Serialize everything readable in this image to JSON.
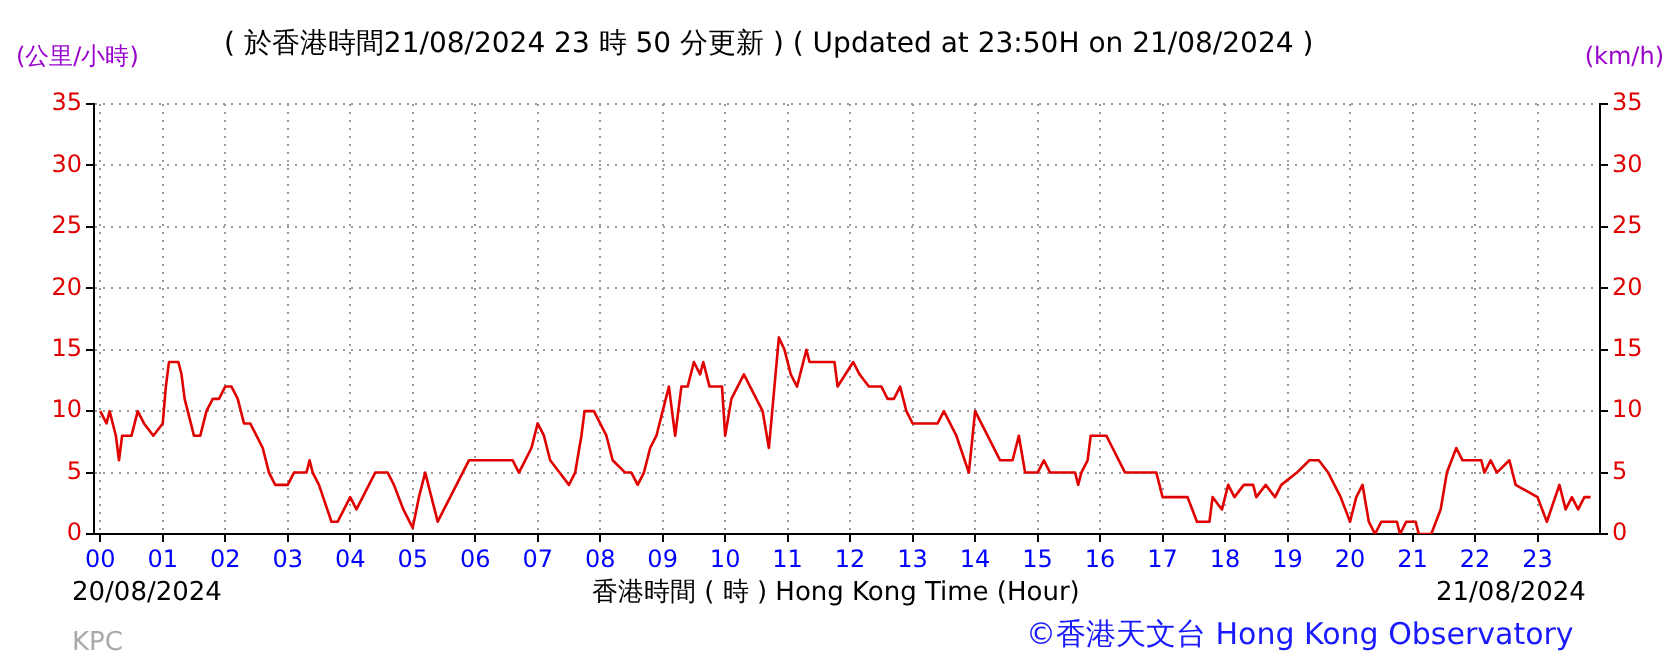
{
  "chart_data": {
    "type": "line",
    "title": "( 於香港時間21/08/2024 23 時 50 分更新 ) ( Updated at 23:50H on 21/08/2024 )",
    "xlabel": "香港時間 ( 時 )  Hong Kong Time (Hour)",
    "ylabel": "(公里/小時)",
    "y2label": "(km/h)",
    "annotations": [
      "20/08/2024",
      "21/08/2024",
      "KPC",
      "©香港天文台 Hong Kong Observatory"
    ],
    "x": [
      0,
      0.1,
      0.15,
      0.25,
      0.3,
      0.35,
      0.5,
      0.55,
      0.6,
      0.7,
      0.85,
      1.0,
      1.05,
      1.1,
      1.25,
      1.3,
      1.35,
      1.45,
      1.5,
      1.6,
      1.7,
      1.8,
      1.9,
      2.0,
      2.1,
      2.2,
      2.3,
      2.4,
      2.5,
      2.6,
      2.7,
      2.8,
      2.9,
      3.0,
      3.1,
      3.3,
      3.35,
      3.4,
      3.5,
      3.7,
      3.8,
      3.9,
      4.0,
      4.1,
      4.2,
      4.3,
      4.4,
      4.6,
      4.7,
      4.85,
      5.0,
      5.1,
      5.2,
      5.35,
      5.4,
      5.5,
      5.6,
      5.7,
      5.8,
      5.9,
      6.0,
      6.6,
      6.7,
      6.8,
      6.9,
      7.0,
      7.1,
      7.2,
      7.35,
      7.5,
      7.6,
      7.7,
      7.75,
      7.9,
      8.0,
      8.1,
      8.2,
      8.4,
      8.5,
      8.6,
      8.7,
      8.8,
      8.9,
      9.0,
      9.1,
      9.2,
      9.3,
      9.4,
      9.5,
      9.6,
      9.65,
      9.75,
      9.95,
      10.0,
      10.1,
      10.2,
      10.3,
      10.4,
      10.6,
      10.7,
      10.86,
      10.95,
      11.05,
      11.15,
      11.3,
      11.35,
      11.5,
      11.75,
      11.8,
      12.05,
      12.15,
      12.3,
      12.5,
      12.6,
      12.7,
      12.8,
      12.9,
      13.0,
      13.4,
      13.5,
      13.6,
      13.7,
      13.9,
      14.0,
      14.2,
      14.4,
      14.6,
      14.7,
      14.8,
      15.0,
      15.1,
      15.2,
      15.6,
      15.65,
      15.7,
      15.8,
      15.85,
      16.1,
      16.2,
      16.3,
      16.4,
      16.9,
      17.0,
      17.4,
      17.55,
      17.75,
      17.8,
      17.95,
      18.05,
      18.15,
      18.3,
      18.45,
      18.5,
      18.65,
      18.8,
      18.9,
      19.15,
      19.35,
      19.5,
      19.65,
      19.85,
      20.0,
      20.1,
      20.2,
      20.3,
      20.4,
      20.5,
      20.75,
      20.8,
      20.9,
      21.05,
      21.1,
      21.3,
      21.45,
      21.55,
      21.7,
      21.8,
      22.1,
      22.15,
      22.25,
      22.35,
      22.55,
      22.65,
      23.0,
      23.15,
      23.35,
      23.45,
      23.55,
      23.65,
      23.75,
      23.85
    ],
    "series": [
      {
        "color": "#e00000",
        "values": [
          10,
          9,
          10,
          8,
          6,
          8,
          8,
          9,
          10,
          9,
          8,
          9,
          12,
          14,
          14,
          13,
          11,
          9,
          8,
          8,
          10,
          11,
          11,
          12,
          12,
          11,
          9,
          9,
          8,
          7,
          5,
          4,
          4,
          4,
          5,
          5,
          6,
          5,
          4,
          1,
          1,
          2,
          3,
          2,
          3,
          4,
          5,
          5,
          4,
          2,
          0.5,
          3,
          5,
          2,
          1,
          2,
          3,
          4,
          5,
          6,
          6,
          6,
          5,
          6,
          7,
          9,
          8,
          6,
          5,
          4,
          5,
          8,
          10,
          10,
          9,
          8,
          6,
          5,
          5,
          4,
          5,
          7,
          8,
          10,
          12,
          8,
          12,
          12,
          14,
          13,
          14,
          12,
          12,
          8,
          11,
          12,
          13,
          12,
          10,
          7,
          16,
          15,
          13,
          12,
          15,
          14,
          14,
          14,
          12,
          14,
          13,
          12,
          12,
          11,
          11,
          12,
          10,
          9,
          9,
          10,
          9,
          8,
          5,
          10,
          8,
          6,
          6,
          8,
          5,
          5,
          6,
          5,
          5,
          4,
          5,
          6,
          8,
          8,
          7,
          6,
          5,
          5,
          3,
          3,
          1,
          1,
          3,
          2,
          4,
          3,
          4,
          4,
          3,
          4,
          3,
          4,
          5,
          6,
          6,
          5,
          3,
          1,
          3,
          4,
          1,
          0,
          1,
          1,
          0,
          1,
          1,
          0,
          0,
          2,
          5,
          7,
          6,
          6,
          5,
          6,
          5,
          6,
          4,
          3,
          1,
          4,
          2,
          3,
          2,
          3,
          3
        ]
      }
    ],
    "xlim": [
      -0.1,
      24
    ],
    "xticks": [
      {
        "value": 0,
        "label": "00"
      },
      {
        "value": 1,
        "label": "01"
      },
      {
        "value": 2,
        "label": "02"
      },
      {
        "value": 3,
        "label": "03"
      },
      {
        "value": 4,
        "label": "04"
      },
      {
        "value": 5,
        "label": "05"
      },
      {
        "value": 6,
        "label": "06"
      },
      {
        "value": 7,
        "label": "07"
      },
      {
        "value": 8,
        "label": "08"
      },
      {
        "value": 9,
        "label": "09"
      },
      {
        "value": 10,
        "label": "10"
      },
      {
        "value": 11,
        "label": "11"
      },
      {
        "value": 12,
        "label": "12"
      },
      {
        "value": 13,
        "label": "13"
      },
      {
        "value": 14,
        "label": "14"
      },
      {
        "value": 15,
        "label": "15"
      },
      {
        "value": 16,
        "label": "16"
      },
      {
        "value": 17,
        "label": "17"
      },
      {
        "value": 18,
        "label": "18"
      },
      {
        "value": 19,
        "label": "19"
      },
      {
        "value": 20,
        "label": "20"
      },
      {
        "value": 21,
        "label": "21"
      },
      {
        "value": 22,
        "label": "22"
      },
      {
        "value": 23,
        "label": "23"
      }
    ],
    "ylim": [
      0,
      35
    ],
    "yticks": [
      0,
      5,
      10,
      15,
      20,
      25,
      30,
      35
    ],
    "y2lim": [
      0,
      35
    ],
    "y2ticks": [
      0,
      5,
      10,
      15,
      20,
      25,
      30,
      35
    ],
    "grid": true,
    "legend": false,
    "marker": "none",
    "line_style": "solid"
  }
}
